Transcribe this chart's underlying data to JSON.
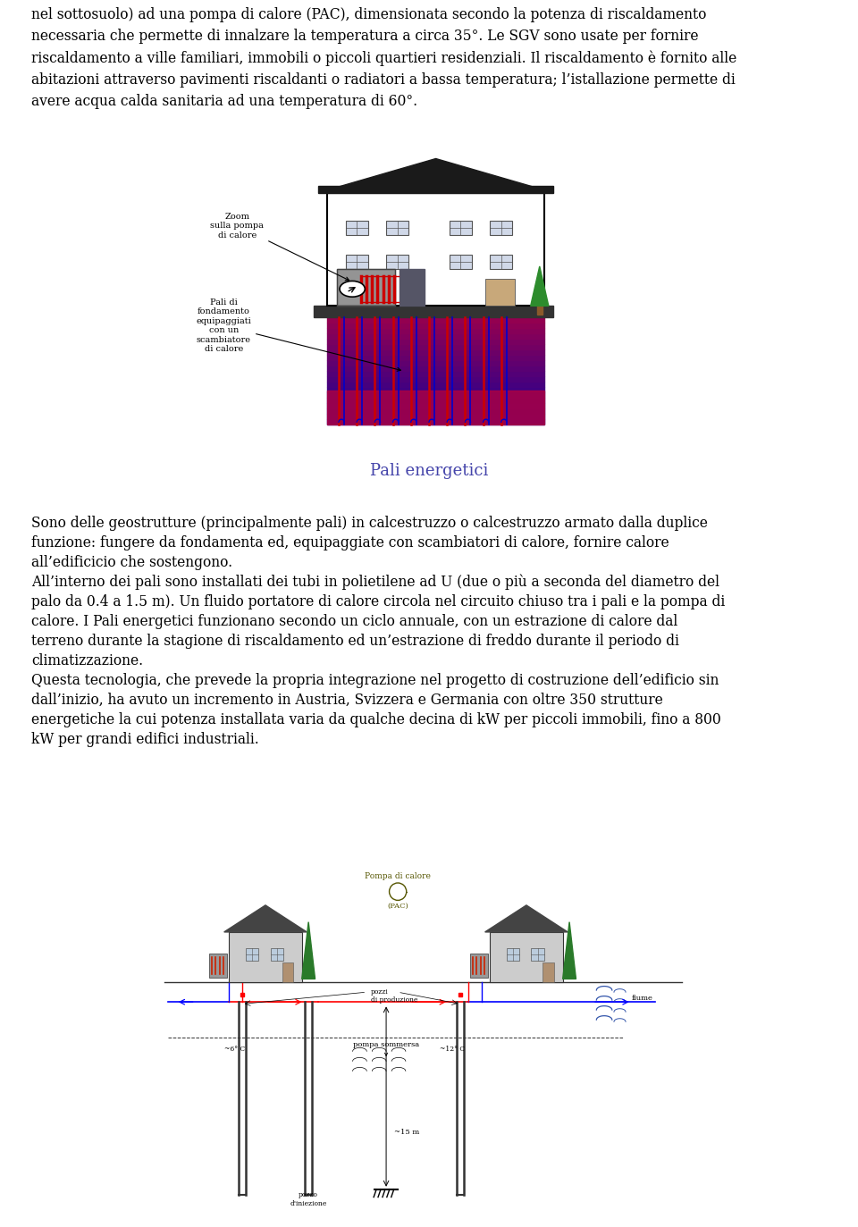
{
  "bg_color": "#ffffff",
  "text_color": "#000000",
  "page_width": 9.6,
  "page_height": 13.73,
  "font_size_body": 11.2,
  "font_size_title": 13,
  "title_color": "#4444aa",
  "paragraph1": "nel sottosuolo) ad una pompa di calore (PAC), dimensionata secondo la potenza di riscaldamento\nnecessaria che permette di innalzare la temperatura a circa 35°. Le SGV sono usate per fornire\nriscaldamento a ville familiari, immobili o piccoli quartieri residenziali. Il riscaldamento è fornito alle\nabitazioni attraverso pavimenti riscaldanti o radiatori a bassa temperatura; l’istallazione permette di\navere acqua calda sanitaria ad una temperatura di 60°.",
  "section_title": "Pali energetici",
  "paragraph2_lines": [
    "Sono delle geostrutture (principalmente pali) in calcestruzzo o calcestruzzo armato dalla duplice",
    "funzione: fungere da fondamenta ed, equipaggiate con scambiatori di calore, fornire calore",
    "all’edificicio che sostengono.",
    "All’interno dei pali sono installati dei tubi in polietilene ad U (due o più a seconda del diametro del",
    "palo da 0.4 a 1.5 m). Un fluido portatore di calore circola nel circuito chiuso tra i pali e la pompa di",
    "calore. I Pali energetici funzionano secondo un ciclo annuale, con un estrazione di calore dal",
    "terreno durante la stagione di riscaldamento ed un’estrazione di freddo durante il periodo di",
    "climatizzazione.",
    "Questa tecnologia, che prevede la propria integrazione nel progetto di costruzione dell’edificio sin",
    "dall’inizio, ha avuto un incremento in Austria, Svizzera e Germania con oltre 350 strutture",
    "energetiche la cui potenza installata varia da qualche decina di kW per piccoli immobili, fino a 800",
    "kW per grandi edifici industriali."
  ]
}
